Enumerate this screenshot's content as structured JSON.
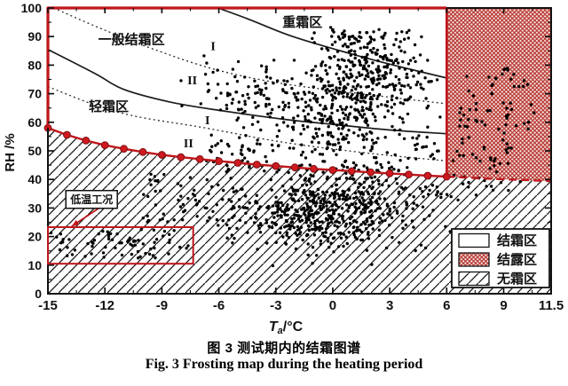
{
  "figure": {
    "captions": {
      "zh": "图 3 测试期内的结霜图谱",
      "en": "Fig. 3 Frosting map during the heating period"
    }
  },
  "chart_data": {
    "type": "scatter",
    "title": "",
    "xlabel_parts": {
      "symbol": "T",
      "subscript": "a",
      "unit": "/°C"
    },
    "ylabel": "RH /%",
    "xlim": [
      -15,
      11.5
    ],
    "ylim": [
      0,
      100
    ],
    "x_major_ticks": [
      -15,
      -12,
      -9,
      -6,
      -3,
      0,
      3,
      6,
      9,
      11.5
    ],
    "x_tick_labels": [
      "-15",
      "-12",
      "-9",
      "-6",
      "-3",
      "0",
      "3",
      "6",
      "9",
      "11.5"
    ],
    "x_minor_step": 1.5,
    "y_major_ticks": [
      0,
      10,
      20,
      30,
      40,
      50,
      60,
      70,
      80,
      90,
      100
    ],
    "y_tick_labels": [
      "0",
      "10",
      "20",
      "30",
      "40",
      "50",
      "60",
      "70",
      "80",
      "90",
      "100"
    ],
    "y_minor_step": 5,
    "grid": false,
    "frost_line": {
      "description": "frosting critical line with red circular markers",
      "markers": [
        [
          -15,
          58
        ],
        [
          -14,
          55.6
        ],
        [
          -13,
          53.6
        ],
        [
          -12,
          52
        ],
        [
          -11,
          50.7
        ],
        [
          -10,
          49.6
        ],
        [
          -9,
          48.6
        ],
        [
          -8,
          47.8
        ],
        [
          -7,
          47.1
        ],
        [
          -6,
          46.4
        ],
        [
          -5,
          45.8
        ],
        [
          -4,
          45.2
        ],
        [
          -3,
          44.7
        ],
        [
          -2,
          44.2
        ],
        [
          -1,
          43.7
        ],
        [
          0,
          43.3
        ],
        [
          1,
          42.9
        ],
        [
          2,
          42.5
        ],
        [
          3,
          42.1
        ],
        [
          4,
          41.7
        ],
        [
          5,
          41.3
        ],
        [
          6,
          41
        ]
      ],
      "dashed_extension": [
        [
          6,
          41
        ],
        [
          8,
          40.3
        ],
        [
          10,
          39.8
        ],
        [
          11.5,
          39.4
        ]
      ]
    },
    "zone_boundaries": {
      "solid": [
        {
          "name": "heavy-frost/general-frost boundary",
          "points": [
            [
              -6.05,
              100
            ],
            [
              -4.4,
              96
            ],
            [
              -2.1,
              90
            ],
            [
              1.2,
              83.5
            ],
            [
              3.5,
              79.5
            ],
            [
              6,
              75.5
            ]
          ]
        },
        {
          "name": "general-frost/light-frost boundary",
          "points": [
            [
              -15,
              85.5
            ],
            [
              -12.5,
              77
            ],
            [
              -11,
              71.5
            ],
            [
              -8.5,
              67
            ],
            [
              -5.8,
              64
            ],
            [
              -2.5,
              61
            ],
            [
              0.4,
              59
            ],
            [
              3,
              57.3
            ],
            [
              6,
              56
            ]
          ]
        }
      ],
      "dotted": [
        {
          "name": "general-frost sub-zone I/II divider",
          "points": [
            [
              -14.7,
              100
            ],
            [
              -12.1,
              92.5
            ],
            [
              -9.4,
              85.5
            ],
            [
              -6.2,
              78.5
            ],
            [
              -2.6,
              73.5
            ],
            [
              2.1,
              69.5
            ],
            [
              6,
              66.5
            ]
          ]
        },
        {
          "name": "light-frost sub-zone I/II divider",
          "points": [
            [
              -15,
              72.5
            ],
            [
              -12.5,
              66
            ],
            [
              -10.3,
              62
            ],
            [
              -6.7,
              58
            ],
            [
              -2.6,
              53
            ],
            [
              2.1,
              49
            ],
            [
              6,
              46.5
            ]
          ]
        }
      ]
    },
    "zone_labels": [
      {
        "text": "重霜区",
        "x": -1.6,
        "y": 95,
        "style": "cjk"
      },
      {
        "text": "一般结霜区",
        "x": -10.6,
        "y": 89,
        "style": "cjk"
      },
      {
        "text": "轻霜区",
        "x": -11.8,
        "y": 65.5,
        "style": "cjk"
      },
      {
        "text": "I",
        "x": -6.3,
        "y": 86.8,
        "style": "roman"
      },
      {
        "text": "II",
        "x": -7.4,
        "y": 74.8,
        "style": "roman"
      },
      {
        "text": "I",
        "x": -6.6,
        "y": 60.8,
        "style": "roman"
      },
      {
        "text": "II",
        "x": -7.6,
        "y": 52.8,
        "style": "roman"
      }
    ],
    "regions": [
      {
        "label": "结霜区",
        "pattern": "blank",
        "extent": "above frost line, Ta < 6 °C"
      },
      {
        "label": "结露区",
        "pattern": "red-crosshatch",
        "extent": "Ta 6–11.5 °C, above frost line"
      },
      {
        "label": "无霜区",
        "pattern": "diagonal-hatch",
        "extent": "below frost line"
      }
    ],
    "low_temp_annotation": {
      "label": "低温工况",
      "box_ta": [
        -15,
        -7.35
      ],
      "box_rh": [
        10.5,
        23.3
      ],
      "label_center": [
        -12.7,
        33
      ]
    },
    "legend": {
      "items": [
        {
          "pattern": "blank",
          "label": "结霜区"
        },
        {
          "pattern": "red-crosshatch",
          "label": "结露区"
        },
        {
          "pattern": "diagonal-hatch",
          "label": "无霜区"
        }
      ]
    },
    "scatter_seed": 11,
    "scatter_clusters": [
      {
        "shape": "uniform",
        "n": 70,
        "ta": [
          -14.9,
          -7.5
        ],
        "rh": [
          12.5,
          22.5
        ]
      },
      {
        "shape": "uniform",
        "n": 55,
        "ta": [
          -10,
          -5.2
        ],
        "rh": [
          24,
          43
        ]
      },
      {
        "shape": "gauss",
        "n": 430,
        "mu": [
          0.3,
          31
        ],
        "sigma": [
          2.1,
          7.5
        ],
        "rh_clip": [
          9,
          50
        ]
      },
      {
        "shape": "gauss",
        "n": 180,
        "mu": [
          -2.2,
          27
        ],
        "sigma": [
          2.4,
          6
        ],
        "ta_clip": [
          -7.2,
          2
        ]
      },
      {
        "shape": "uniform",
        "n": 110,
        "ta": [
          -6.8,
          5.6
        ],
        "rh": [
          43,
          56
        ]
      },
      {
        "shape": "gauss",
        "n": 280,
        "mu": [
          0.6,
          63
        ],
        "sigma": [
          2.2,
          6.5
        ],
        "rh_clip": [
          50,
          78
        ]
      },
      {
        "shape": "gauss",
        "n": 240,
        "mu": [
          1.8,
          77
        ],
        "sigma": [
          1.7,
          6
        ],
        "rh_clip": [
          60,
          93
        ],
        "ta_clip": [
          -4,
          5.7
        ]
      },
      {
        "shape": "gauss",
        "n": 55,
        "mu": [
          -4.2,
          70
        ],
        "sigma": [
          1.0,
          4.5
        ]
      },
      {
        "shape": "uniform",
        "n": 18,
        "ta": [
          -8,
          -4.5
        ],
        "rh": [
          60,
          84
        ]
      },
      {
        "shape": "gauss",
        "n": 55,
        "mu": [
          1.2,
          89
        ],
        "sigma": [
          0.9,
          2.2
        ],
        "rh_clip": [
          84,
          95
        ]
      },
      {
        "shape": "uniform",
        "n": 8,
        "ta": [
          3.2,
          4.8
        ],
        "rh": [
          87,
          93
        ]
      },
      {
        "shape": "uniform",
        "n": 72,
        "ta": [
          6.3,
          9.6
        ],
        "rh": [
          42,
          79
        ]
      },
      {
        "shape": "uniform",
        "n": 10,
        "ta": [
          9.6,
          10.7
        ],
        "rh": [
          55,
          75
        ]
      },
      {
        "shape": "uniform",
        "n": 14,
        "ta": [
          4.6,
          7.4
        ],
        "rh": [
          33,
          41
        ]
      },
      {
        "shape": "uniform",
        "n": 8,
        "ta": [
          7.5,
          10
        ],
        "rh": [
          36,
          40.5
        ]
      }
    ]
  },
  "colors": {
    "red": "#bf161c",
    "marker_fill": "#cf1a20",
    "marker_edge": "#7c0e12",
    "crosshatch_line": "#b5332c",
    "crosshatch_bg": "#f7e4e2",
    "hatch_line": "#1a1a1a",
    "ink": "#111111",
    "dot": "#000000"
  }
}
